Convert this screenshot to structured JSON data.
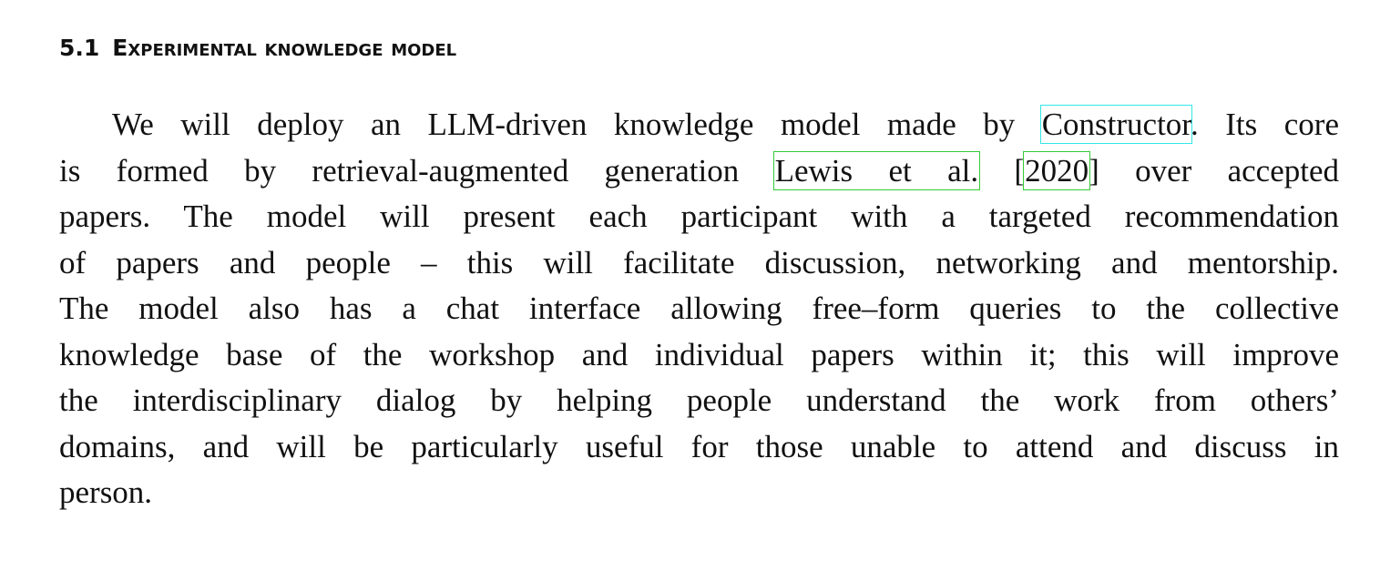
{
  "section": {
    "number": "5.1",
    "title": "Experimental knowledge model"
  },
  "paragraph": {
    "lines": [
      [
        "We will deploy an LLM-driven knowledge model made by ",
        "Constructor",
        ". Its core"
      ],
      [
        "is formed by retrieval-augmented generation ",
        "Lewis et al.",
        " [",
        "2020",
        "] over accepted"
      ],
      [
        "papers. The model will present each participant with a targeted recommendation"
      ],
      [
        "of papers and people – this will facilitate discussion, networking and mentorship."
      ],
      [
        "The model also has a chat interface allowing free–form queries to the collective"
      ],
      [
        "knowledge base of the workshop and individual papers within it; this will improve"
      ],
      [
        "the interdisciplinary dialog by helping people understand the work from others’"
      ],
      [
        "domains, and will be particularly useful for those unable to attend and discuss in"
      ],
      [
        "person."
      ]
    ]
  }
}
